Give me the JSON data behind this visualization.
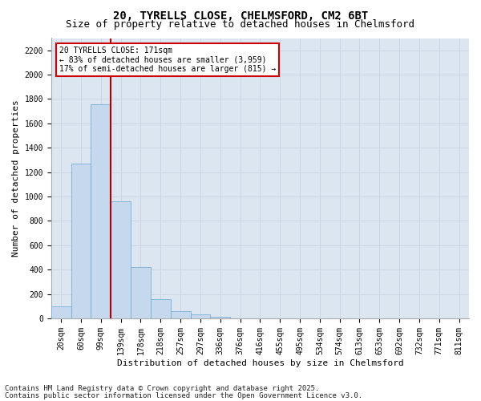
{
  "title_line1": "20, TYRELLS CLOSE, CHELMSFORD, CM2 6BT",
  "title_line2": "Size of property relative to detached houses in Chelmsford",
  "xlabel": "Distribution of detached houses by size in Chelmsford",
  "ylabel": "Number of detached properties",
  "categories": [
    "20sqm",
    "60sqm",
    "99sqm",
    "139sqm",
    "178sqm",
    "218sqm",
    "257sqm",
    "297sqm",
    "336sqm",
    "376sqm",
    "416sqm",
    "455sqm",
    "495sqm",
    "534sqm",
    "574sqm",
    "613sqm",
    "653sqm",
    "692sqm",
    "732sqm",
    "771sqm",
    "811sqm"
  ],
  "values": [
    100,
    1270,
    1760,
    960,
    420,
    160,
    60,
    30,
    10,
    3,
    1,
    0,
    0,
    0,
    0,
    0,
    0,
    0,
    0,
    0,
    0
  ],
  "bar_color": "#c5d8ed",
  "bar_edge_color": "#7aafd4",
  "vline_x_index": 3,
  "vline_color": "#aa0000",
  "annotation_text": "20 TYRELLS CLOSE: 171sqm\n← 83% of detached houses are smaller (3,959)\n17% of semi-detached houses are larger (815) →",
  "annotation_box_facecolor": "#ffffff",
  "annotation_box_edgecolor": "#cc0000",
  "ylim": [
    0,
    2300
  ],
  "yticks": [
    0,
    200,
    400,
    600,
    800,
    1000,
    1200,
    1400,
    1600,
    1800,
    2000,
    2200
  ],
  "grid_color": "#c8d4e3",
  "background_color": "#dce6f0",
  "footer_line1": "Contains HM Land Registry data © Crown copyright and database right 2025.",
  "footer_line2": "Contains public sector information licensed under the Open Government Licence v3.0.",
  "title_fontsize": 10,
  "subtitle_fontsize": 9,
  "tick_fontsize": 7,
  "label_fontsize": 8,
  "footer_fontsize": 6.5
}
